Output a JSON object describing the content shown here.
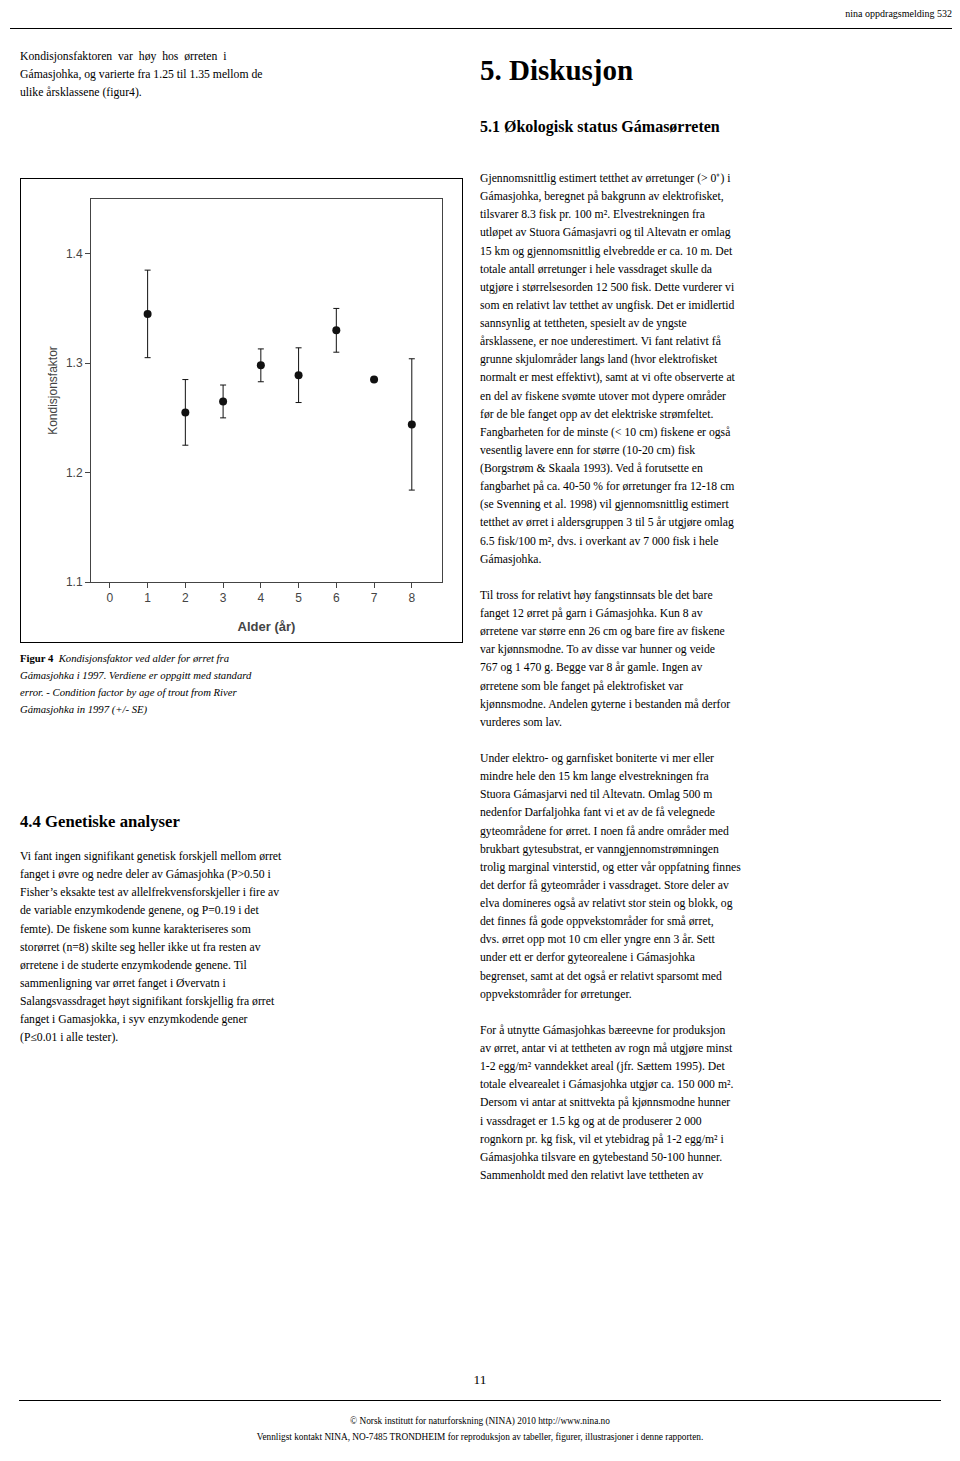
{
  "chart_data": {
    "type": "scatter",
    "x": [
      1,
      2,
      3,
      4,
      5,
      6,
      7,
      8
    ],
    "values": [
      1.345,
      1.255,
      1.265,
      1.298,
      1.289,
      1.33,
      1.285,
      1.244
    ],
    "errors": [
      0.04,
      0.03,
      0.015,
      0.015,
      0.025,
      0.02,
      0.0,
      0.06
    ],
    "color": "#111111",
    "marker": "circle",
    "xlabel": "Alder (år)",
    "ylabel": "Kondisjonsfaktor",
    "xlim": [
      -0.5,
      8.8
    ],
    "ylim": [
      1.1,
      1.45
    ],
    "xticks": [
      0,
      1,
      2,
      3,
      4,
      5,
      6,
      7,
      8
    ],
    "yticks": [
      1.1,
      1.2,
      1.3,
      1.4
    ],
    "grid": false,
    "annotations": [
      "nina oppdragsmelding 532",
      "Kondisjonsfaktoren  var  høy  hos  ørreten  i\nGámasjohka, og varierte fra 1.25 til 1.35 mellom de\nulike årsklassene (figur4).",
      "Figur 4",
      "Kondisjonsfaktor ved alder for ørret fra",
      "Gámasjohka i 1997. Verdiene er oppgitt med standard",
      "error. - Condition factor by age of trout from River",
      "Gámasjohka in 1997 (+/- SE)",
      "4.4 Genetiske analyser",
      "Vi fant ingen signifikant genetisk forskjell mellom ørret\nfanget i øvre og nedre deler av Gámasjohka (P>0.50 i\nFisher’s eksakte test av allelfrekvensforskjeller i fire av\nde variable enzymkodende genene, og P=0.19 i det\nfemte). De fiskene som kunne karakteriseres som\nstorørret (n=8) skilte seg heller ikke ut fra resten av\nørretene i de studerte enzymkodende genene. Til\nsammenligning var ørret fanget i Øvervatn i\nSalangsvassdraget høyt signifikant forskjellig fra ørret\nfanget i Gamasjokka, i syv enzymkodende gener\n(P≤0.01 i alle tester).",
      "5. Diskusjon",
      "5.1 Økologisk status Gámasørreten",
      "Gjennomsnittlig estimert tetthet av ørretunger (> 0⁺) i\nGámasjohka, beregnet på bakgrunn av elektrofisket,\ntilsvarer 8.3 fisk pr. 100 m². Elvestrekningen fra\nutløpet av Stuora Gámasjavri og til Altevatn er omlag\n15 km og gjennomsnittlig elvebredde er ca. 10 m. Det\ntotale antall ørretunger i hele vassdraget skulle da\nutgjøre i størrelsesorden 12 500 fisk. Dette vurderer vi\nsom en relativt lav tetthet av ungfisk. Det er imidlertid\nsannsynlig at tettheten, spesielt av de yngste\nårsklassene, er noe underestimert. Vi fant relativt få\ngrunne skjulområder langs land (hvor elektrofisket\nnormalt er mest effektivt), samt at vi ofte observerte at\nen del av fiskene svømte utover mot dypere områder\nfør de ble fanget opp av det elektriske strømfeltet.\nFangbarheten for de minste (< 10 cm) fiskene er også\nvesentlig lavere enn for større (10-20 cm) fisk\n(Borgstrøm & Skaala 1993). Ved å forutsette en\nfangbarhet på ca. 40-50 % for ørretunger fra 12-18 cm\n(se Svenning et al. 1998) vil gjennomsnittlig estimert\ntetthet av ørret i aldersgruppen 3 til 5 år utgjøre omlag\n6.5 fisk/100 m², dvs. i overkant av 7 000 fisk i hele\nGámasjohka.\n\nTil tross for relativt høy fangstinnsats ble det bare\nfanget 12 ørret på garn i Gámasjohka. Kun 8 av\nørretene var større enn 26 cm og bare fire av fiskene\nvar kjønnsmodne. To av disse var hunner og veide\n767 og 1 470 g. Begge var 8 år gamle. Ingen av\nørretene som ble fanget på elektrofisket var\nkjønnsmodne. Andelen gyterne i bestanden må derfor\nvurderes som lav.\n\nUnder elektro- og garnfisket boniterte vi mer eller\nmindre hele den 15 km lange elvestrekningen fra\nStuora Gámasjarvi ned til Altevatn. Omlag 500 m\nnedenfor Darfaljohka fant vi et av de få velegnede\ngyteområdene for ørret. I noen få andre områder med\nbrukbart gytesubstrat, er vanngjennomstrømningen\ntrolig marginal vinterstid, og etter vår oppfatning finnes\ndet derfor få gyteområder i vassdraget. Store deler av\nelva domineres også av relativt stor stein og blokk, og\ndet finnes få gode oppvekstområder for små ørret,\ndvs. ørret opp mot 10 cm eller yngre enn 3 år. Sett\nunder ett er derfor gyteorealene i Gámasjohka\nbegrenset, samt at det også er relativt sparsomt med\noppvekstområder for ørretunger.\n\nFor å utnytte Gámasjohkas bæreevne for produksjon\nav ørret, antar vi at tettheten av rogn må utgjøre minst\n1-2 egg/m² vanndekket areal (jfr. Sættem 1995). Det\ntotale elvearealet i Gámasjohka utgjør ca. 150 000 m².\nDersom vi antar at snittvekta på kjønnsmodne hunner\ni vassdraget er 1.5 kg og at de produserer 2 000\nrognkorn pr. kg fisk, vil et ytebidrag på 1-2 egg/m² i\nGámasjohka tilsvare en gytebestand 50-100 hunner.\nSammenholdt med den relativt lave tettheten av",
      "11",
      "© Norsk institutt for naturforskning (NINA) 2010 http://www.nina.no",
      "Vennligst kontakt NINA, NO-7485 TRONDHEIM for reproduksjon av tabeller, figurer, illustrasjoner i denne rapporten."
    ]
  }
}
